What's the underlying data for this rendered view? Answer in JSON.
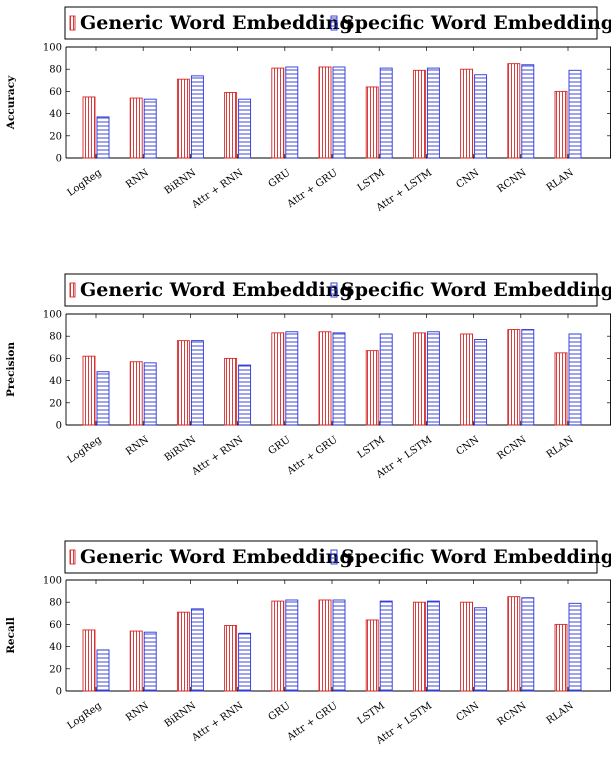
{
  "colors": {
    "generic": "#d62728",
    "specific": "#2a35d6"
  },
  "chart_data": [
    {
      "type": "bar",
      "categories": [
        "LogReg",
        "RNN",
        "BiRNN",
        "Attr + RNN",
        "GRU",
        "Attr + GRU",
        "LSTM",
        "Attr + LSTM",
        "CNN",
        "RCNN",
        "RLAN"
      ],
      "series": [
        {
          "name": "Generic Word Embedding",
          "values": [
            55,
            54,
            71,
            59,
            81,
            82,
            64,
            79,
            80,
            85,
            60
          ]
        },
        {
          "name": "Specific Word Embedding",
          "values": [
            37,
            53,
            74,
            53,
            82,
            82,
            81,
            81,
            75,
            84,
            79
          ]
        }
      ],
      "title": "",
      "xlabel": "",
      "ylabel": "Accuracy",
      "ylim": [
        0,
        100
      ],
      "yticks": [
        "0",
        "20",
        "40",
        "60",
        "80",
        "100"
      ],
      "grid": false,
      "legend_position": "top"
    },
    {
      "type": "bar",
      "categories": [
        "LogReg",
        "RNN",
        "BiRNN",
        "Attr + RNN",
        "GRU",
        "Attr + GRU",
        "LSTM",
        "Attr + LSTM",
        "CNN",
        "RCNN",
        "RLAN"
      ],
      "series": [
        {
          "name": "Generic Word Embedding",
          "values": [
            62,
            57,
            76,
            60,
            83,
            84,
            67,
            83,
            82,
            86,
            65
          ]
        },
        {
          "name": "Specific Word Embedding",
          "values": [
            48,
            56,
            76,
            54,
            84,
            83,
            82,
            84,
            77,
            86,
            82
          ]
        }
      ],
      "title": "",
      "xlabel": "",
      "ylabel": "Precision",
      "ylim": [
        0,
        100
      ],
      "yticks": [
        "0",
        "20",
        "40",
        "60",
        "80",
        "100"
      ],
      "grid": false,
      "legend_position": "top"
    },
    {
      "type": "bar",
      "categories": [
        "LogReg",
        "RNN",
        "BiRNN",
        "Attr + RNN",
        "GRU",
        "Attr + GRU",
        "LSTM",
        "Attr + LSTM",
        "CNN",
        "RCNN",
        "RLAN"
      ],
      "series": [
        {
          "name": "Generic Word Embedding",
          "values": [
            55,
            54,
            71,
            59,
            81,
            82,
            64,
            80,
            80,
            85,
            60
          ]
        },
        {
          "name": "Specific Word Embedding",
          "values": [
            37,
            53,
            74,
            52,
            82,
            82,
            81,
            81,
            75,
            84,
            79
          ]
        }
      ],
      "title": "",
      "xlabel": "",
      "ylabel": "Recall",
      "ylim": [
        0,
        100
      ],
      "yticks": [
        "0",
        "20",
        "40",
        "60",
        "80",
        "100"
      ],
      "grid": false,
      "legend_position": "top"
    }
  ]
}
